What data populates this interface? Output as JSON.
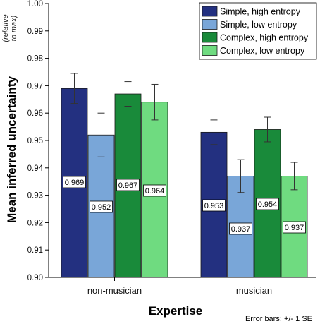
{
  "chart_data": {
    "type": "bar",
    "categories": [
      "non-musician",
      "musician"
    ],
    "series": [
      {
        "name": "Simple, high entropy",
        "color": "#233080",
        "values": [
          0.969,
          0.953
        ],
        "error": [
          0.0055,
          0.0045
        ],
        "labels": [
          "0.969",
          "0.953"
        ]
      },
      {
        "name": "Simple, low entropy",
        "color": "#79a6d8",
        "values": [
          0.952,
          0.937
        ],
        "error": [
          0.008,
          0.006
        ],
        "labels": [
          "0.952",
          "0.937"
        ]
      },
      {
        "name": "Complex, high entropy",
        "color": "#198a3a",
        "values": [
          0.967,
          0.954
        ],
        "error": [
          0.0045,
          0.0045
        ],
        "labels": [
          "0.967",
          "0.954"
        ]
      },
      {
        "name": "Complex, low entropy",
        "color": "#6fdb80",
        "values": [
          0.964,
          0.937
        ],
        "error": [
          0.0065,
          0.005
        ],
        "labels": [
          "0.964",
          "0.937"
        ]
      }
    ],
    "ylim": [
      0.9,
      1.0
    ],
    "yticks": [
      "0.90",
      "0.91",
      "0.92",
      "0.93",
      "0.94",
      "0.95",
      "0.96",
      "0.97",
      "0.98",
      "0.99",
      "1.00"
    ],
    "xlabel": "Expertise",
    "ylabel": "Mean inferred uncertainty",
    "ylabel_sub": "(relative to max)",
    "note": "Error bars: +/- 1 SE",
    "legend_position": "top-right",
    "grid": false
  }
}
